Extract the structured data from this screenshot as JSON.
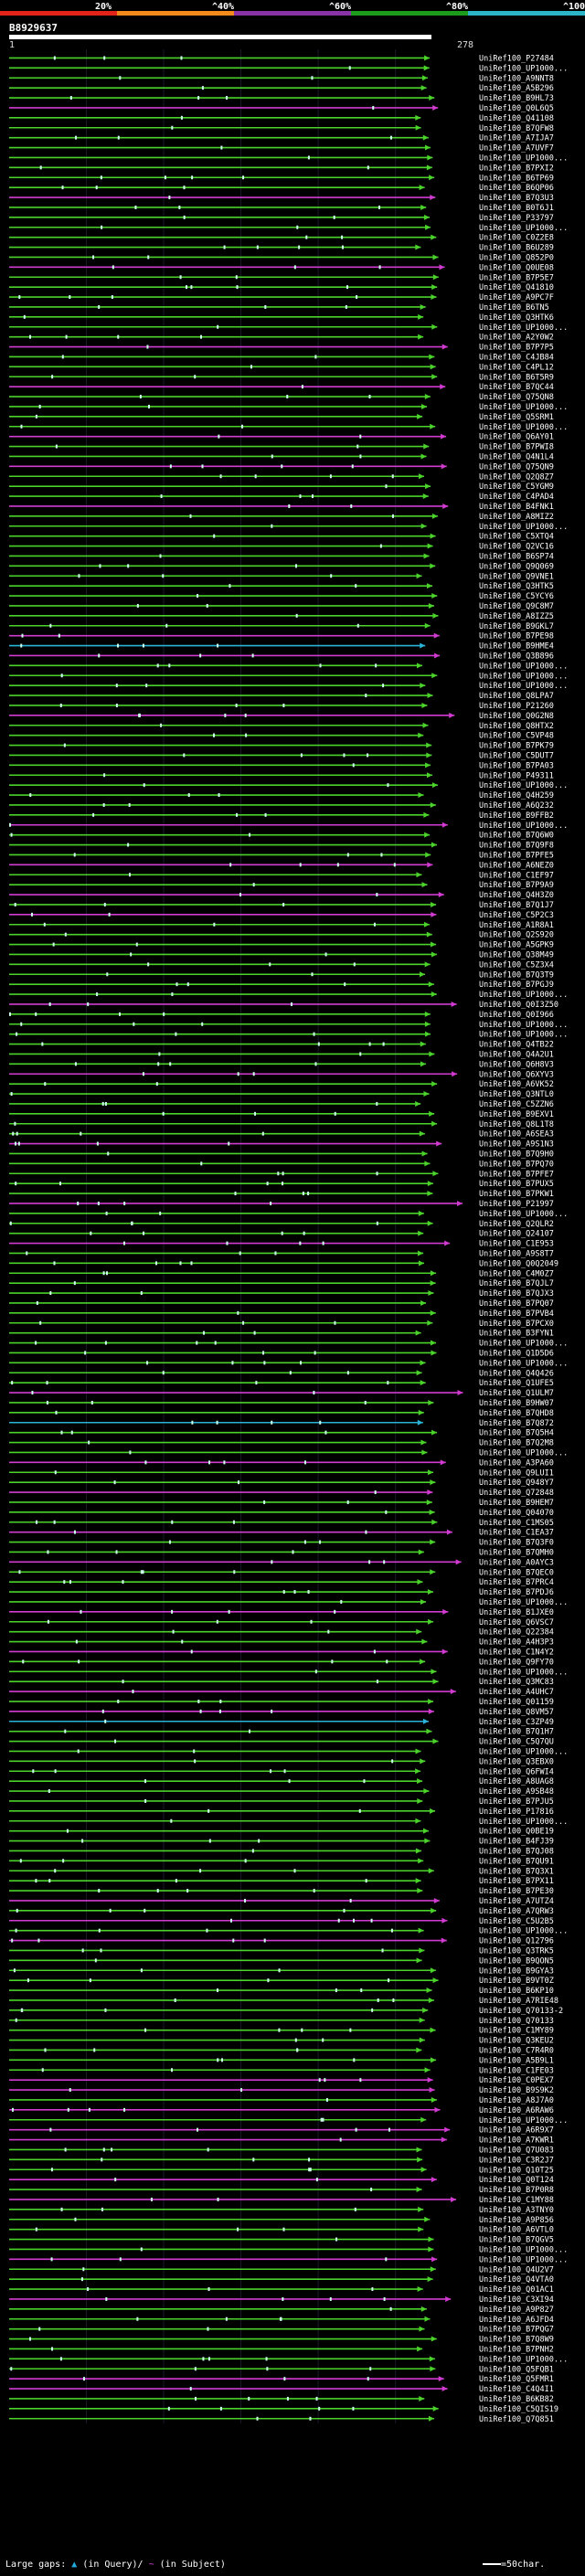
{
  "legend": {
    "ticks": [
      "20%",
      "^40%",
      "^60%",
      "^80%",
      "^100%"
    ],
    "colors": [
      "#e2231a",
      "#f28a1c",
      "#8a32a8",
      "#1b9d1b",
      "#2ab5c8"
    ]
  },
  "query": {
    "id": "B8929637",
    "length_label": "278",
    "start_label": "1"
  },
  "footer": {
    "large_gaps": "Large gaps:",
    "query_gap": "(in Query)",
    "subject_gap": "(in Subject)",
    "scale": "=50char."
  },
  "chart_data": {
    "type": "alignment-hits",
    "title": "B8929637",
    "query_length": 278,
    "identity_legend": [
      "20%",
      "40%",
      "60%",
      "80%",
      "100%"
    ],
    "hits": [
      {
        "id": "UniRef100_P27484",
        "color": "green"
      },
      {
        "id": "UniRef100_UP1000...",
        "color": "green"
      },
      {
        "id": "UniRef100_A9NNT8",
        "color": "green"
      },
      {
        "id": "UniRef100_A5B296",
        "color": "green"
      },
      {
        "id": "UniRef100_B9HL73",
        "color": "green"
      },
      {
        "id": "UniRef100_Q0L6Q5",
        "color": "magenta"
      },
      {
        "id": "UniRef100_Q41108",
        "color": "green"
      },
      {
        "id": "UniRef100_B7QFW8",
        "color": "green"
      },
      {
        "id": "UniRef100_A7IJA7",
        "color": "green"
      },
      {
        "id": "UniRef100_A7UVF7",
        "color": "green"
      },
      {
        "id": "UniRef100_UP1000...",
        "color": "green"
      },
      {
        "id": "UniRef100_B7PXI2",
        "color": "green"
      },
      {
        "id": "UniRef100_B6TP69",
        "color": "green"
      },
      {
        "id": "UniRef100_B6QP06",
        "color": "green"
      },
      {
        "id": "UniRef100_B7Q3U3",
        "color": "magenta"
      },
      {
        "id": "UniRef100_B0T6J1",
        "color": "green"
      },
      {
        "id": "UniRef100_P33797",
        "color": "green"
      },
      {
        "id": "UniRef100_UP1000...",
        "color": "green"
      },
      {
        "id": "UniRef100_C0Z2E8",
        "color": "green"
      },
      {
        "id": "UniRef100_B6U289",
        "color": "green"
      },
      {
        "id": "UniRef100_Q852P0",
        "color": "green"
      },
      {
        "id": "UniRef100_Q0UE08",
        "color": "magenta"
      },
      {
        "id": "UniRef100_B7P5E7",
        "color": "green"
      },
      {
        "id": "UniRef100_Q41810",
        "color": "green"
      },
      {
        "id": "UniRef100_A9PC7F",
        "color": "green"
      },
      {
        "id": "UniRef100_B6TN5",
        "color": "green"
      },
      {
        "id": "UniRef100_Q3HTK6",
        "color": "green"
      },
      {
        "id": "UniRef100_UP1000...",
        "color": "green"
      },
      {
        "id": "UniRef100_A2Y0W2",
        "color": "green"
      },
      {
        "id": "UniRef100_B7P7P5",
        "color": "magenta"
      },
      {
        "id": "UniRef100_C4JB84",
        "color": "green"
      },
      {
        "id": "UniRef100_C4PL12",
        "color": "green"
      },
      {
        "id": "UniRef100_B6T5R9",
        "color": "green"
      },
      {
        "id": "UniRef100_B7QC44",
        "color": "magenta"
      },
      {
        "id": "UniRef100_Q75QN8",
        "color": "green"
      },
      {
        "id": "UniRef100_UP1000...",
        "color": "green"
      },
      {
        "id": "UniRef100_Q5SRM1",
        "color": "green"
      },
      {
        "id": "UniRef100_UP1000...",
        "color": "green"
      },
      {
        "id": "UniRef100_Q6AY01",
        "color": "magenta"
      },
      {
        "id": "UniRef100_B7PWI8",
        "color": "green"
      },
      {
        "id": "UniRef100_Q4N1L4",
        "color": "green"
      },
      {
        "id": "UniRef100_Q75QN9",
        "color": "magenta"
      },
      {
        "id": "UniRef100_Q2Q8Z7",
        "color": "green"
      },
      {
        "id": "UniRef100_C5YGM9",
        "color": "green"
      },
      {
        "id": "UniRef100_C4PAD4",
        "color": "green"
      },
      {
        "id": "UniRef100_B4FNK1",
        "color": "magenta"
      },
      {
        "id": "UniRef100_A8MIZ2",
        "color": "green"
      },
      {
        "id": "UniRef100_UP1000...",
        "color": "green"
      },
      {
        "id": "UniRef100_C5XTQ4",
        "color": "green"
      },
      {
        "id": "UniRef100_Q2VC16",
        "color": "green"
      },
      {
        "id": "UniRef100_B6SP74",
        "color": "green"
      },
      {
        "id": "UniRef100_Q9Q069",
        "color": "green"
      },
      {
        "id": "UniRef100_Q9VNE1",
        "color": "green"
      },
      {
        "id": "UniRef100_Q3HTK5",
        "color": "green"
      },
      {
        "id": "UniRef100_C5YCY6",
        "color": "green"
      },
      {
        "id": "UniRef100_Q9C8M7",
        "color": "green"
      },
      {
        "id": "UniRef100_A8IZZ5",
        "color": "green"
      },
      {
        "id": "UniRef100_B9GKL7",
        "color": "green"
      },
      {
        "id": "UniRef100_B7PE98",
        "color": "magenta"
      },
      {
        "id": "UniRef100_B9HME4",
        "color": "cyan"
      },
      {
        "id": "UniRef100_Q3B896",
        "color": "magenta"
      },
      {
        "id": "UniRef100_UP1000...",
        "color": "green"
      },
      {
        "id": "UniRef100_UP1000...",
        "color": "green"
      },
      {
        "id": "UniRef100_UP1000...",
        "color": "green"
      },
      {
        "id": "UniRef100_Q8LPA7",
        "color": "green"
      },
      {
        "id": "UniRef100_P21260",
        "color": "green"
      },
      {
        "id": "UniRef100_Q0G2N8",
        "color": "magenta"
      },
      {
        "id": "UniRef100_Q8HTX2",
        "color": "green"
      },
      {
        "id": "UniRef100_C5VP48",
        "color": "green"
      },
      {
        "id": "UniRef100_B7PK79",
        "color": "green"
      },
      {
        "id": "UniRef100_C5DUT7",
        "color": "green"
      },
      {
        "id": "UniRef100_B7PA03",
        "color": "green"
      },
      {
        "id": "UniRef100_P49311",
        "color": "green"
      },
      {
        "id": "UniRef100_UP1000...",
        "color": "green"
      },
      {
        "id": "UniRef100_Q4H259",
        "color": "green"
      },
      {
        "id": "UniRef100_A6Q232",
        "color": "green"
      },
      {
        "id": "UniRef100_B9FFB2",
        "color": "green"
      },
      {
        "id": "UniRef100_UP1000...",
        "color": "magenta"
      },
      {
        "id": "UniRef100_B7Q6W0",
        "color": "green"
      },
      {
        "id": "UniRef100_B7Q9F8",
        "color": "green"
      },
      {
        "id": "UniRef100_B7PFE5",
        "color": "green"
      },
      {
        "id": "UniRef100_A6NEZ0",
        "color": "magenta"
      },
      {
        "id": "UniRef100_C1EF97",
        "color": "green"
      },
      {
        "id": "UniRef100_B7P9A9",
        "color": "green"
      },
      {
        "id": "UniRef100_Q4H3Z0",
        "color": "magenta"
      },
      {
        "id": "UniRef100_B7Q1J7",
        "color": "green"
      },
      {
        "id": "UniRef100_C5P2C3",
        "color": "magenta"
      },
      {
        "id": "UniRef100_A1R8A1",
        "color": "green"
      },
      {
        "id": "UniRef100_Q2S920",
        "color": "green"
      },
      {
        "id": "UniRef100_A5GPK9",
        "color": "green"
      },
      {
        "id": "UniRef100_Q38M49",
        "color": "green"
      },
      {
        "id": "UniRef100_C5Z3X4",
        "color": "green"
      },
      {
        "id": "UniRef100_B7Q3T9",
        "color": "green"
      },
      {
        "id": "UniRef100_B7PGJ9",
        "color": "green"
      },
      {
        "id": "UniRef100_UP1000...",
        "color": "green"
      },
      {
        "id": "UniRef100_Q0I3Z50",
        "color": "magenta"
      },
      {
        "id": "UniRef100_Q0I966",
        "color": "green"
      },
      {
        "id": "UniRef100_UP1000...",
        "color": "green"
      },
      {
        "id": "UniRef100_UP1000...",
        "color": "green"
      },
      {
        "id": "UniRef100_Q4TB22",
        "color": "green"
      },
      {
        "id": "UniRef100_Q4A2U1",
        "color": "green"
      },
      {
        "id": "UniRef100_Q6H8V3",
        "color": "green"
      },
      {
        "id": "UniRef100_Q6XYV3",
        "color": "magenta"
      },
      {
        "id": "UniRef100_A6VK52",
        "color": "green"
      },
      {
        "id": "UniRef100_Q3NTL0",
        "color": "green"
      },
      {
        "id": "UniRef100_C5ZZN6",
        "color": "green"
      },
      {
        "id": "UniRef100_B9EXV1",
        "color": "green"
      },
      {
        "id": "UniRef100_Q8L1T8",
        "color": "green"
      },
      {
        "id": "UniRef100_A6SEA3",
        "color": "green"
      },
      {
        "id": "UniRef100_A9S1N3",
        "color": "magenta"
      },
      {
        "id": "UniRef100_B7Q9H0",
        "color": "green"
      },
      {
        "id": "UniRef100_B7PQ70",
        "color": "green"
      },
      {
        "id": "UniRef100_B7PFE7",
        "color": "green"
      },
      {
        "id": "UniRef100_B7PUX5",
        "color": "green"
      },
      {
        "id": "UniRef100_B7PKW1",
        "color": "green"
      },
      {
        "id": "UniRef100_P21997",
        "color": "magenta"
      },
      {
        "id": "UniRef100_UP1000...",
        "color": "green"
      },
      {
        "id": "UniRef100_Q2QLR2",
        "color": "green"
      },
      {
        "id": "UniRef100_Q24107",
        "color": "green"
      },
      {
        "id": "UniRef100_C1E953",
        "color": "magenta"
      },
      {
        "id": "UniRef100_A9S8T7",
        "color": "green"
      },
      {
        "id": "UniRef100_Q0Q2049",
        "color": "green"
      },
      {
        "id": "UniRef100_C4M0Z7",
        "color": "green"
      },
      {
        "id": "UniRef100_B7QJL7",
        "color": "green"
      },
      {
        "id": "UniRef100_B7QJX3",
        "color": "green"
      },
      {
        "id": "UniRef100_B7PQ07",
        "color": "green"
      },
      {
        "id": "UniRef100_B7PVB4",
        "color": "green"
      },
      {
        "id": "UniRef100_B7PCX0",
        "color": "green"
      },
      {
        "id": "UniRef100_B3FYN1",
        "color": "green"
      },
      {
        "id": "UniRef100_UP1000...",
        "color": "green"
      },
      {
        "id": "UniRef100_Q1D5D6",
        "color": "green"
      },
      {
        "id": "UniRef100_UP1000...",
        "color": "green"
      },
      {
        "id": "UniRef100_Q4Q426",
        "color": "green"
      },
      {
        "id": "UniRef100_Q1UFE5",
        "color": "green"
      },
      {
        "id": "UniRef100_Q1ULM7",
        "color": "magenta"
      },
      {
        "id": "UniRef100_B9HW07",
        "color": "green"
      },
      {
        "id": "UniRef100_B7QHD8",
        "color": "green"
      },
      {
        "id": "UniRef100_B7Q872",
        "color": "cyan"
      },
      {
        "id": "UniRef100_B7Q5H4",
        "color": "green"
      },
      {
        "id": "UniRef100_B7Q2M8",
        "color": "green"
      },
      {
        "id": "UniRef100_UP1000...",
        "color": "green"
      },
      {
        "id": "UniRef100_A3PA60",
        "color": "magenta"
      },
      {
        "id": "UniRef100_Q9LUI1",
        "color": "green"
      },
      {
        "id": "UniRef100_Q948Y7",
        "color": "green"
      },
      {
        "id": "UniRef100_Q72848",
        "color": "magenta"
      },
      {
        "id": "UniRef100_B9HEM7",
        "color": "green"
      },
      {
        "id": "UniRef100_Q04070",
        "color": "green"
      },
      {
        "id": "UniRef100_C1MS05",
        "color": "green"
      },
      {
        "id": "UniRef100_C1EA37",
        "color": "magenta"
      },
      {
        "id": "UniRef100_B7Q3F0",
        "color": "green"
      },
      {
        "id": "UniRef100_B7QMH0",
        "color": "green"
      },
      {
        "id": "UniRef100_A0AYC3",
        "color": "magenta"
      },
      {
        "id": "UniRef100_B7QEC0",
        "color": "green"
      },
      {
        "id": "UniRef100_B7PRC4",
        "color": "green"
      },
      {
        "id": "UniRef100_B7PDJ6",
        "color": "green"
      },
      {
        "id": "UniRef100_UP1000...",
        "color": "green"
      },
      {
        "id": "UniRef100_B1JXE0",
        "color": "magenta"
      },
      {
        "id": "UniRef100_Q6VSC7",
        "color": "green"
      },
      {
        "id": "UniRef100_Q22384",
        "color": "green"
      },
      {
        "id": "UniRef100_A4H3P3",
        "color": "green"
      },
      {
        "id": "UniRef100_C1N4Y2",
        "color": "magenta"
      },
      {
        "id": "UniRef100_Q9FY70",
        "color": "green"
      },
      {
        "id": "UniRef100_UP1000...",
        "color": "green"
      },
      {
        "id": "UniRef100_Q3MC83",
        "color": "green"
      },
      {
        "id": "UniRef100_A4UHC7",
        "color": "magenta"
      },
      {
        "id": "UniRef100_Q01159",
        "color": "green"
      },
      {
        "id": "UniRef100_Q8VM57",
        "color": "magenta"
      },
      {
        "id": "UniRef100_C3ZP49",
        "color": "cyan"
      },
      {
        "id": "UniRef100_B7Q1H7",
        "color": "green"
      },
      {
        "id": "UniRef100_C5Q7QU",
        "color": "green"
      },
      {
        "id": "UniRef100_UP1000...",
        "color": "green"
      },
      {
        "id": "UniRef100_Q3EBX0",
        "color": "green"
      },
      {
        "id": "UniRef100_Q6FWI4",
        "color": "green"
      },
      {
        "id": "UniRef100_A8UAG8",
        "color": "green"
      },
      {
        "id": "UniRef100_A9SB48",
        "color": "green"
      },
      {
        "id": "UniRef100_B7PJU5",
        "color": "green"
      },
      {
        "id": "UniRef100_P17816",
        "color": "green"
      },
      {
        "id": "UniRef100_UP1000...",
        "color": "green"
      },
      {
        "id": "UniRef100_Q0BE19",
        "color": "green"
      },
      {
        "id": "UniRef100_B4FJ39",
        "color": "green"
      },
      {
        "id": "UniRef100_B7QJ08",
        "color": "green"
      },
      {
        "id": "UniRef100_B7QU91",
        "color": "green"
      },
      {
        "id": "UniRef100_B7Q3X1",
        "color": "green"
      },
      {
        "id": "UniRef100_B7PX11",
        "color": "green"
      },
      {
        "id": "UniRef100_B7PE30",
        "color": "green"
      },
      {
        "id": "UniRef100_A7UTZ4",
        "color": "magenta"
      },
      {
        "id": "UniRef100_A7QRW3",
        "color": "green"
      },
      {
        "id": "UniRef100_C5U2B5",
        "color": "magenta"
      },
      {
        "id": "UniRef100_UP1000...",
        "color": "green"
      },
      {
        "id": "UniRef100_Q12796",
        "color": "magenta"
      },
      {
        "id": "UniRef100_Q3TRK5",
        "color": "green"
      },
      {
        "id": "UniRef100_B9QON5",
        "color": "green"
      },
      {
        "id": "UniRef100_B9GYA3",
        "color": "green"
      },
      {
        "id": "UniRef100_B9VT0Z",
        "color": "green"
      },
      {
        "id": "UniRef100_B6KP10",
        "color": "green"
      },
      {
        "id": "UniRef100_A7RIE48",
        "color": "green"
      },
      {
        "id": "UniRef100_Q70133-2",
        "color": "green"
      },
      {
        "id": "UniRef100_Q70133",
        "color": "green"
      },
      {
        "id": "UniRef100_C1MY89",
        "color": "green"
      },
      {
        "id": "UniRef100_Q3KEU2",
        "color": "green"
      },
      {
        "id": "UniRef100_C7R4R0",
        "color": "green"
      },
      {
        "id": "UniRef100_A5B9L1",
        "color": "green"
      },
      {
        "id": "UniRef100_C1FE03",
        "color": "green"
      },
      {
        "id": "UniRef100_C0PEX7",
        "color": "magenta"
      },
      {
        "id": "UniRef100_B9S9K2",
        "color": "magenta"
      },
      {
        "id": "UniRef100_A8J7A0",
        "color": "green"
      },
      {
        "id": "UniRef100_A6RAW6",
        "color": "magenta"
      },
      {
        "id": "UniRef100_UP1000...",
        "color": "green"
      },
      {
        "id": "UniRef100_A6R9X7",
        "color": "magenta"
      },
      {
        "id": "UniRef100_A7KWR1",
        "color": "magenta"
      },
      {
        "id": "UniRef100_Q7U083",
        "color": "green"
      },
      {
        "id": "UniRef100_C3R2J7",
        "color": "green"
      },
      {
        "id": "UniRef100_Q10T25",
        "color": "green"
      },
      {
        "id": "UniRef100_Q0T124",
        "color": "magenta"
      },
      {
        "id": "UniRef100_B7P0R8",
        "color": "green"
      },
      {
        "id": "UniRef100_C1MY88",
        "color": "magenta"
      },
      {
        "id": "UniRef100_A3TNY0",
        "color": "green"
      },
      {
        "id": "UniRef100_A9P856",
        "color": "green"
      },
      {
        "id": "UniRef100_A6VTL0",
        "color": "green"
      },
      {
        "id": "UniRef100_B7QGV5",
        "color": "green"
      },
      {
        "id": "UniRef100_UP1000...",
        "color": "green"
      },
      {
        "id": "UniRef100_UP1000...",
        "color": "magenta"
      },
      {
        "id": "UniRef100_Q4U2V7",
        "color": "green"
      },
      {
        "id": "UniRef100_Q4VTA0",
        "color": "green"
      },
      {
        "id": "UniRef100_Q01AC1",
        "color": "green"
      },
      {
        "id": "UniRef100_C3XI94",
        "color": "magenta"
      },
      {
        "id": "UniRef100_A9P827",
        "color": "green"
      },
      {
        "id": "UniRef100_A6JFD4",
        "color": "green"
      },
      {
        "id": "UniRef100_B7PQG7",
        "color": "green"
      },
      {
        "id": "UniRef100_B7Q8W9",
        "color": "green"
      },
      {
        "id": "UniRef100_B7PNH2",
        "color": "green"
      },
      {
        "id": "UniRef100_UP1000...",
        "color": "green"
      },
      {
        "id": "UniRef100_Q5FQB1",
        "color": "green"
      },
      {
        "id": "UniRef100_Q5FMR1",
        "color": "magenta"
      },
      {
        "id": "UniRef100_C4Q4I1",
        "color": "magenta"
      },
      {
        "id": "UniRef100_B6KB82",
        "color": "green"
      },
      {
        "id": "UniRef100_C5QIS19",
        "color": "green"
      },
      {
        "id": "UniRef100_Q7Q851",
        "color": "green"
      }
    ]
  }
}
